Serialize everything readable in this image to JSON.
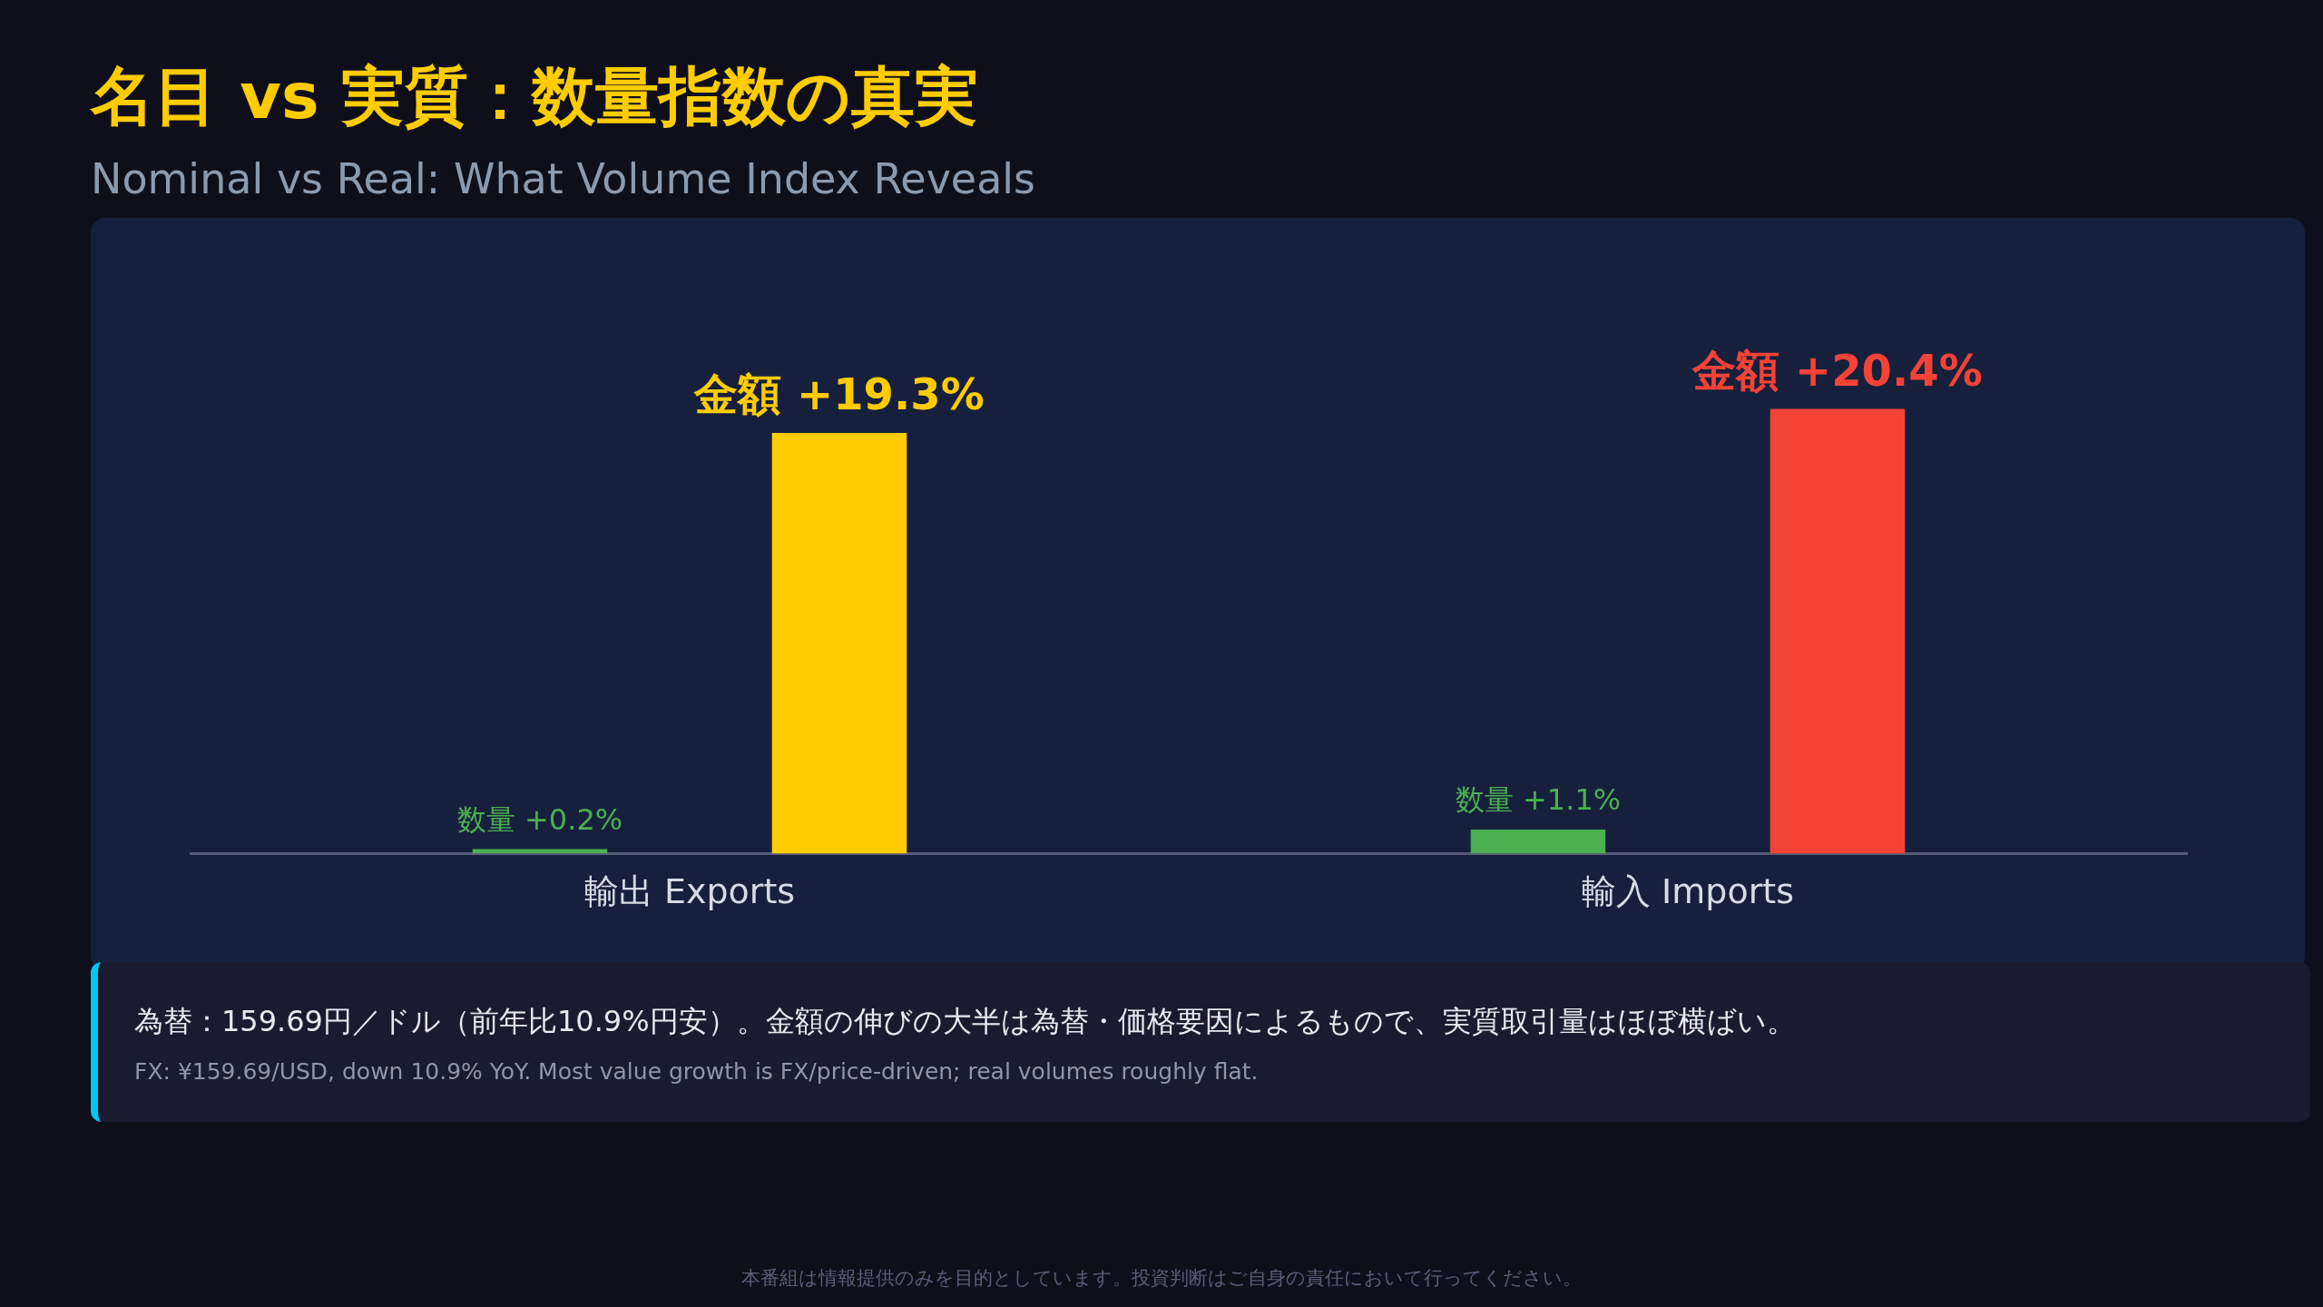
{
  "chart_data": {
    "type": "bar",
    "title": "名目 vs 実質：数量指数の真実",
    "subtitle": "Nominal vs Real: What Volume Index Reveals",
    "categories": [
      "輸出 Exports",
      "輸入 Imports"
    ],
    "series": [
      {
        "color": "#4caf50",
        "values": [
          0.2,
          1.1
        ],
        "value_labels": [
          "数量 +0.2%",
          "数量 +1.1%"
        ]
      },
      {
        "colors": [
          "#ffcc00",
          "#f44336"
        ],
        "values": [
          19.3,
          20.4
        ],
        "value_labels": [
          "金額 +19.3%",
          "金額 +20.4%"
        ]
      }
    ],
    "grid": false,
    "legend": false,
    "tick_labels": "x",
    "annotations": [
      "為替：159.69円／ドル（前年比10.9%円安）。金額の伸びの大半は為替・価格要因によるもので、実質取引量はほぼ横ばい。",
      "FX: ¥159.69/USD, down 10.9% YoY. Most value growth is FX/price-driven; real volumes roughly flat.",
      "本番組は情報提供のみを目的としています。投資判断はご自身の責任において行ってください。"
    ]
  }
}
